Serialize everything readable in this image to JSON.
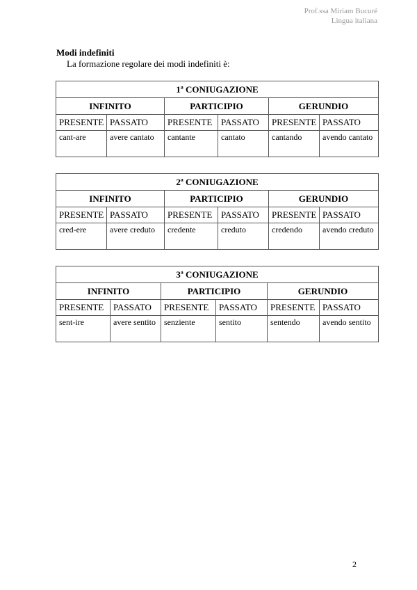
{
  "header": {
    "author": "Prof.ssa Miriam Bucuré",
    "subject": "Lingua italiana"
  },
  "title": "Modi indefiniti",
  "intro": "La formazione regolare dei modi indefiniti è:",
  "moods": [
    "INFINITO",
    "PARTICIPIO",
    "GERUNDIO"
  ],
  "tenses": [
    "PRESENTE",
    "PASSATO",
    "PRESENTE",
    "PASSATO",
    "PRESENTE",
    "PASSATO"
  ],
  "tables": [
    {
      "title": "1ª CONIUGAZIONE",
      "row": [
        "cant-are",
        "avere cantato",
        "cantante",
        "cantato",
        "cantando",
        "avendo cantato"
      ]
    },
    {
      "title": "2ª CONIUGAZIONE",
      "row": [
        "cred-ere",
        "avere creduto",
        "credente",
        "creduto",
        "credendo",
        "avendo creduto"
      ]
    },
    {
      "title": "3ª CONIUGAZIONE",
      "row": [
        "sent-ire",
        "avere sentito",
        "senziente",
        "sentito",
        "sentendo",
        "avendo sentito"
      ]
    }
  ],
  "page_number": "2"
}
